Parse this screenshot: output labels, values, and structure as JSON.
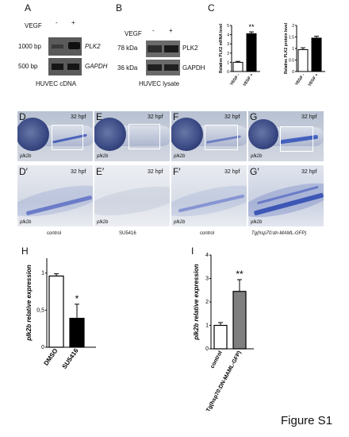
{
  "figure_label": "Figure S1",
  "panels": {
    "A": {
      "label": "A",
      "vegf": "VEGF",
      "minus": "-",
      "plus": "+",
      "size1": "1000 bp",
      "size2": "500 bp",
      "gene1": "PLK2",
      "gene2": "GAPDH",
      "caption": "HUVEC cDNA"
    },
    "B": {
      "label": "B",
      "vegf": "VEGF",
      "minus": "-",
      "plus": "+",
      "size1": "78 kDa",
      "size2": "36 kDa",
      "gene1": "PLK2",
      "gene2": "GAPDH",
      "caption": "HUVEC lysate"
    },
    "C": {
      "label": "C"
    },
    "D": {
      "label": "D",
      "hpf": "32 hpf",
      "gene": "plk2b"
    },
    "E": {
      "label": "E",
      "hpf": "32 hpf",
      "gene": "plk2b"
    },
    "F": {
      "label": "F",
      "hpf": "32 hpf",
      "gene": "plk2b"
    },
    "G": {
      "label": "G",
      "hpf": "32 hpf",
      "gene": "plk2b"
    },
    "Dp": {
      "label": "D′",
      "hpf": "32 hpf",
      "gene": "plk2b",
      "caption": "control"
    },
    "Ep": {
      "label": "E′",
      "hpf": "32 hpf",
      "gene": "plk2b",
      "caption": "SU5416"
    },
    "Fp": {
      "label": "F′",
      "hpf": "32 hpf",
      "gene": "plk2b",
      "caption": "control"
    },
    "Gp": {
      "label": "G′",
      "hpf": "32 hpf",
      "gene": "plk2b",
      "caption": "Tg(hsp70:dn-MAML-GFP)"
    },
    "H": {
      "label": "H"
    },
    "I": {
      "label": "I"
    }
  },
  "chart_data": [
    {
      "panel": "C-left",
      "type": "bar",
      "categories": [
        "VEGF -",
        "VEGF +"
      ],
      "values": [
        1.0,
        4.1
      ],
      "errors": [
        0.1,
        0.2
      ],
      "fills": [
        "#ffffff",
        "#000000"
      ],
      "ylabel": "Relative PLK2 mRNA level",
      "ylim": [
        0,
        5
      ],
      "yticks": [
        0,
        1,
        2,
        3,
        4,
        5
      ],
      "significance": "**"
    },
    {
      "panel": "C-right",
      "type": "bar",
      "categories": [
        "VEGF -",
        "VEGF +"
      ],
      "values": [
        0.95,
        1.45
      ],
      "errors": [
        0.08,
        0.08
      ],
      "fills": [
        "#ffffff",
        "#000000"
      ],
      "ylabel": "Relative PLK2 protein level",
      "ylim": [
        0,
        2
      ],
      "yticks": [
        0.0,
        0.5,
        1.0,
        1.5,
        2.0
      ],
      "significance": ""
    },
    {
      "panel": "H",
      "type": "bar",
      "categories": [
        "DMSO",
        "SU5416"
      ],
      "values": [
        0.96,
        0.39
      ],
      "errors": [
        0.03,
        0.19
      ],
      "fills": [
        "#ffffff",
        "#000000"
      ],
      "ylabel": "plk2b relative expression",
      "ylim": [
        0,
        1.2
      ],
      "yticks": [
        0,
        0.5,
        1
      ],
      "ytick_labels": [
        "0",
        "0,5",
        "1"
      ],
      "significance": "*"
    },
    {
      "panel": "I",
      "type": "bar",
      "categories": [
        "control",
        "Tg(hsp70:DN-MAML-GFP)"
      ],
      "values": [
        1.0,
        2.45
      ],
      "errors": [
        0.12,
        0.5
      ],
      "fills": [
        "#ffffff",
        "#7f7f7f"
      ],
      "ylabel": "plk2b relative expression",
      "ylim": [
        0,
        4
      ],
      "yticks": [
        0,
        1,
        2,
        3,
        4
      ],
      "significance": "**"
    }
  ]
}
